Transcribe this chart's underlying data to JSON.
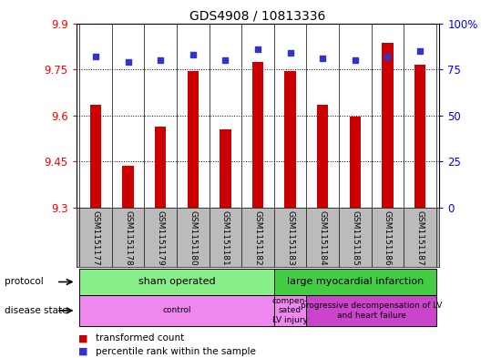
{
  "title": "GDS4908 / 10813336",
  "samples": [
    "GSM1151177",
    "GSM1151178",
    "GSM1151179",
    "GSM1151180",
    "GSM1151181",
    "GSM1151182",
    "GSM1151183",
    "GSM1151184",
    "GSM1151185",
    "GSM1151186",
    "GSM1151187"
  ],
  "transformed_count": [
    9.635,
    9.435,
    9.565,
    9.745,
    9.555,
    9.775,
    9.745,
    9.635,
    9.595,
    9.835,
    9.765
  ],
  "percentile_rank": [
    82,
    79,
    80,
    83,
    80,
    86,
    84,
    81,
    80,
    82,
    85
  ],
  "ymin": 9.3,
  "ymax": 9.9,
  "yticks": [
    9.3,
    9.45,
    9.6,
    9.75,
    9.9
  ],
  "right_ytick_vals": [
    0,
    25,
    50,
    75,
    100
  ],
  "right_ytick_labels": [
    "0",
    "25",
    "50",
    "75",
    "100%"
  ],
  "bar_color": "#cc0000",
  "marker_color": "#3333cc",
  "bg_color": "#ffffff",
  "bar_width": 0.35,
  "protocol_groups": [
    {
      "label": "sham operated",
      "start": 0,
      "end": 5,
      "color": "#88ee88"
    },
    {
      "label": "large myocardial infarction",
      "start": 6,
      "end": 10,
      "color": "#44cc44"
    }
  ],
  "disease_groups": [
    {
      "label": "control",
      "start": 0,
      "end": 5,
      "color": "#ee88ee"
    },
    {
      "label": "compen-\nsated\nLV injury",
      "start": 6,
      "end": 6,
      "color": "#ee88ee"
    },
    {
      "label": "progressive decompensation of LV\nand heart failure",
      "start": 7,
      "end": 10,
      "color": "#cc44cc"
    }
  ],
  "label_bg": "#bbbbbb",
  "legend_items": [
    {
      "color": "#cc0000",
      "label": "transformed count"
    },
    {
      "color": "#3333cc",
      "label": "percentile rank within the sample"
    }
  ]
}
